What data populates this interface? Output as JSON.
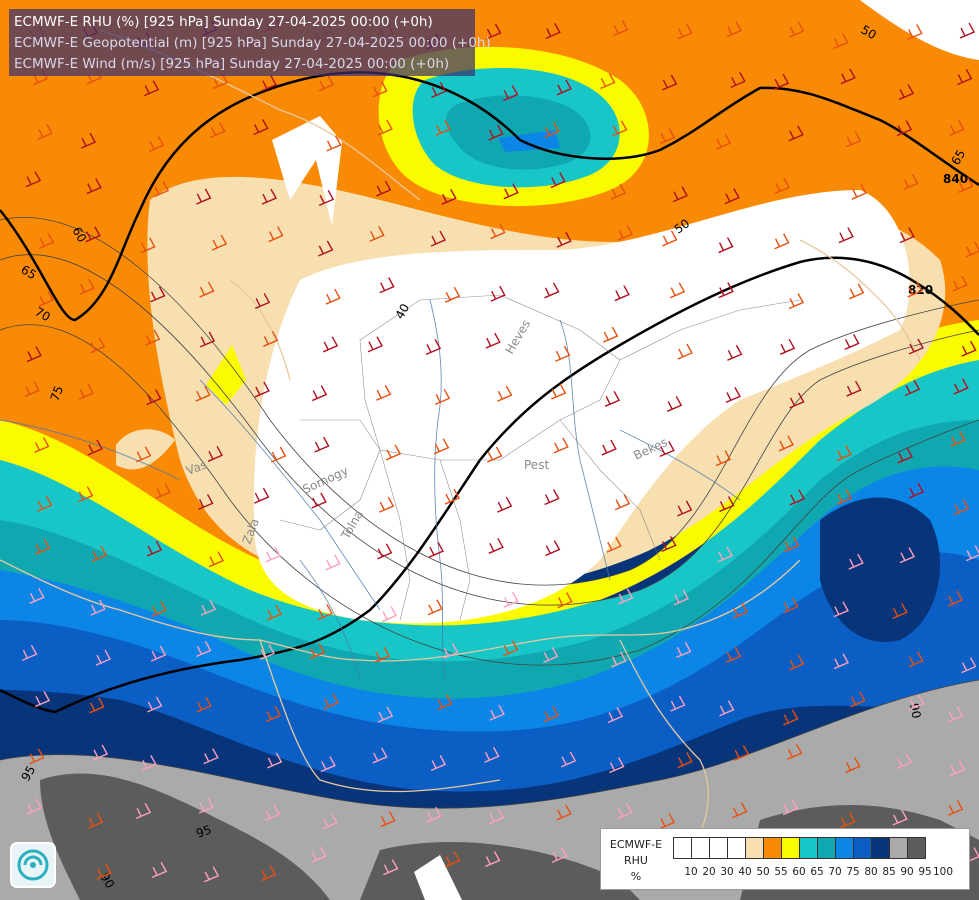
{
  "title": {
    "rhu": "ECMWF-E RHU (%) [925 hPa] Sunday 27-04-2025 00:00 (+0h)",
    "geopotential": "ECMWF-E Geopotential (m) [925 hPa] Sunday 27-04-2025 00:00 (+0h)",
    "wind": "ECMWF-E Wind (m/s) [925 hPa] Sunday 27-04-2025 00:00 (+0h)"
  },
  "legend": {
    "model": "ECMWF-E",
    "variable": "RHU",
    "unit": "%",
    "ticks": [
      "10",
      "20",
      "30",
      "40",
      "50",
      "55",
      "60",
      "65",
      "70",
      "75",
      "80",
      "85",
      "90",
      "95",
      "100"
    ],
    "colors": [
      "#ffffff",
      "#ffffff",
      "#ffffff",
      "#ffffff",
      "#f7dfb0",
      "#f98a05",
      "#fbfb00",
      "#18c6c8",
      "#10a8b0",
      "#0c86e6",
      "#0a5ec4",
      "#08347a",
      "#aaaaaa",
      "#5c5c5c"
    ]
  },
  "map_labels": {
    "contours": [
      "50",
      "65",
      "840",
      "60",
      "50",
      "820",
      "40",
      "65",
      "70",
      "75",
      "95",
      "95",
      "90",
      "90"
    ],
    "places": [
      "Heves",
      "Pest",
      "Bekes",
      "Vas",
      "Somogy",
      "Tolna",
      "Zala"
    ]
  },
  "colors": {
    "rh_white": "#ffffff",
    "rh_50": "#f7dfb0",
    "rh_55": "#f98a05",
    "rh_60": "#fbfb00",
    "rh_65": "#18c6c8",
    "rh_70": "#10a8b0",
    "rh_75": "#0c86e6",
    "rh_80": "#0a5ec4",
    "rh_85": "#08347a",
    "rh_90": "#aaaaaa",
    "rh_95": "#5c5c5c",
    "barb_orange": "#e85010",
    "barb_red": "#b01020",
    "barb_pink": "#ffa0c0",
    "geopotential_line": "#000000"
  }
}
